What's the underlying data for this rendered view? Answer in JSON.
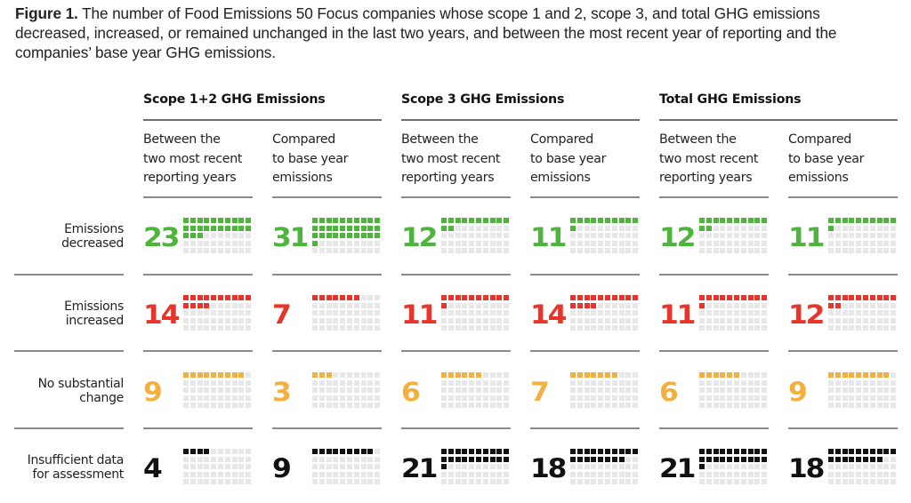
{
  "caption": {
    "label": "Figure 1.",
    "text": " The number of Food Emissions 50 Focus companies whose scope 1 and 2, scope 3, and total GHG emissions decreased, increased, or remained unchanged in the last two years, and between the most recent year of reporting and the companies’ base year GHG emissions."
  },
  "chart_data": {
    "type": "waffle",
    "total_per_grid": 50,
    "grid": "10 columns x 5 rows",
    "groups": [
      "Scope 1+2 GHG Emissions",
      "Scope 3 GHG Emissions",
      "Total GHG Emissions"
    ],
    "columns": [
      {
        "group": "Scope 1+2 GHG Emissions",
        "label": "Between the\ntwo most recent\nreporting years"
      },
      {
        "group": "Scope 1+2 GHG Emissions",
        "label": "Compared\nto base year\nemissions"
      },
      {
        "group": "Scope 3 GHG Emissions",
        "label": "Between the\ntwo most recent\nreporting years"
      },
      {
        "group": "Scope 3 GHG Emissions",
        "label": "Compared\nto base year\nemissions"
      },
      {
        "group": "Total GHG Emissions",
        "label": "Between the\ntwo most recent\nreporting years"
      },
      {
        "group": "Total GHG Emissions",
        "label": "Compared\nto base year\nemissions"
      }
    ],
    "series": [
      {
        "name": "Emissions\ndecreased",
        "color": "#4db53c",
        "values": [
          23,
          31,
          12,
          11,
          12,
          11
        ]
      },
      {
        "name": "Emissions\nincreased",
        "color": "#e8342a",
        "values": [
          14,
          7,
          11,
          14,
          11,
          12
        ]
      },
      {
        "name": "No substantial\nchange",
        "color": "#f4b03e",
        "values": [
          9,
          3,
          6,
          7,
          6,
          9
        ]
      },
      {
        "name": "Insufficient data\nfor assessment",
        "color": "#111111",
        "values": [
          4,
          9,
          21,
          18,
          21,
          18
        ]
      }
    ],
    "empty_color": "#e8e8ea"
  }
}
